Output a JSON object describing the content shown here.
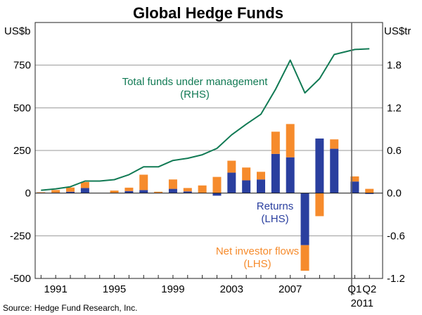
{
  "chart_data": {
    "type": "bar+line",
    "title": "Global Hedge Funds",
    "left_unit": "US$b",
    "right_unit": "US$tr",
    "left_axis": {
      "min": -500,
      "max": 1000,
      "ticks": [
        750,
        500,
        250,
        0,
        -250,
        -500
      ],
      "tick_labels": [
        "750",
        "500",
        "250",
        "0",
        "-250",
        "-500"
      ]
    },
    "right_axis": {
      "min": -1.2,
      "max": 2.4,
      "ticks": [
        1.8,
        1.2,
        0.6,
        0.0,
        -0.6,
        -1.2
      ],
      "tick_labels": [
        "1.8",
        "1.2",
        "0.6",
        "0.0",
        "-0.6",
        "-1.2"
      ]
    },
    "x_tick_labels": [
      {
        "label": "1991",
        "pos": 1991
      },
      {
        "label": "1995",
        "pos": 1995
      },
      {
        "label": "1999",
        "pos": 1999
      },
      {
        "label": "2003",
        "pos": 2003
      },
      {
        "label": "2007",
        "pos": 2007
      },
      {
        "label": "Q1",
        "pos": 2011.4
      },
      {
        "label": "Q2",
        "pos": 2012.4
      }
    ],
    "x_year_label": "2011",
    "categories": [
      "1990",
      "1991",
      "1992",
      "1993",
      "1994",
      "1995",
      "1996",
      "1997",
      "1998",
      "1999",
      "2000",
      "2001",
      "2002",
      "2003",
      "2004",
      "2005",
      "2006",
      "2007",
      "2008",
      "2009",
      "2010",
      "2011 Q1",
      "2011 Q2"
    ],
    "bar_series": [
      {
        "name": "Returns",
        "color": "#2a3f9f",
        "values": [
          2,
          3,
          8,
          30,
          0,
          0,
          12,
          18,
          0,
          25,
          10,
          0,
          -15,
          120,
          75,
          80,
          230,
          210,
          -305,
          320,
          260,
          68,
          -5
        ]
      },
      {
        "name": "Net investor flows",
        "color": "#f68b2c",
        "values": [
          3,
          15,
          25,
          35,
          0,
          15,
          20,
          90,
          8,
          55,
          20,
          45,
          95,
          70,
          75,
          45,
          130,
          195,
          -150,
          -135,
          55,
          30,
          25
        ]
      }
    ],
    "line_series": {
      "name": "Total funds under management",
      "color": "#117a54",
      "x": [
        1990,
        1991,
        1992,
        1993,
        1994,
        1995,
        1996,
        1997,
        1998,
        1999,
        2000,
        2001,
        2002,
        2003,
        2004,
        2005,
        2006,
        2007,
        2008,
        2009,
        2010,
        2011.4,
        2012.4
      ],
      "values": [
        0.04,
        0.06,
        0.09,
        0.17,
        0.17,
        0.19,
        0.26,
        0.37,
        0.37,
        0.46,
        0.49,
        0.54,
        0.63,
        0.82,
        0.97,
        1.11,
        1.46,
        1.87,
        1.41,
        1.61,
        1.95,
        2.02,
        2.03
      ]
    },
    "annotations": [
      {
        "line1": "Total funds under management",
        "line2": "(RHS)",
        "series": "line"
      },
      {
        "line1": "Returns",
        "line2": "(LHS)",
        "series": "returns"
      },
      {
        "line1": "Net investor flows",
        "line2": "(LHS)",
        "series": "flows"
      }
    ],
    "source": "Source: Hedge Fund Research, Inc."
  }
}
